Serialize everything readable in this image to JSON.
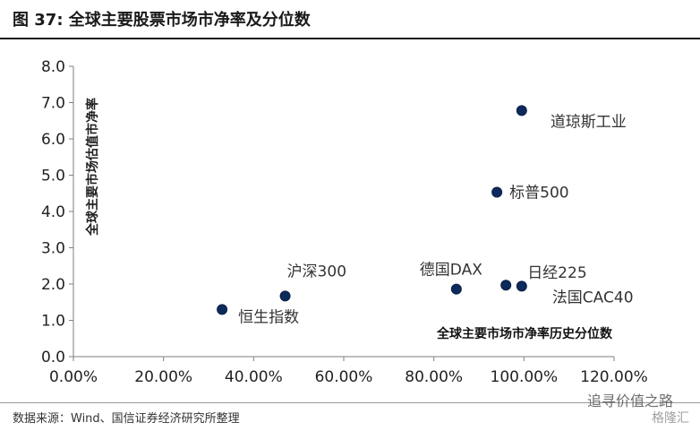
{
  "figure": {
    "title": "图 37:  全球主要股票市场市净率及分位数",
    "source": "数据来源：Wind、国信证券经济研究所整理",
    "watermark": "追寻价值之路",
    "watermark2": "格隆汇"
  },
  "chart_data": {
    "type": "scatter",
    "xlabel": "全球主要市场市净率历史分位数",
    "ylabel": "全球主要市场估值市净率",
    "xlim": [
      0,
      1.2
    ],
    "ylim": [
      0,
      8.0
    ],
    "xticks": [
      "0.00%",
      "20.00%",
      "40.00%",
      "60.00%",
      "80.00%",
      "100.00%",
      "120.00%"
    ],
    "yticks": [
      "0.0",
      "1.0",
      "2.0",
      "3.0",
      "4.0",
      "5.0",
      "6.0",
      "7.0",
      "8.0"
    ],
    "grid": false,
    "marker_color": "#0d2a5c",
    "points": [
      {
        "label": "恒生指数",
        "x": 0.33,
        "y": 1.3
      },
      {
        "label": "沪深300",
        "x": 0.47,
        "y": 1.67
      },
      {
        "label": "德国DAX",
        "x": 0.85,
        "y": 1.86
      },
      {
        "label": "日经225",
        "x": 0.96,
        "y": 1.97
      },
      {
        "label": "法国CAC40",
        "x": 0.995,
        "y": 1.94
      },
      {
        "label": "标普500",
        "x": 0.94,
        "y": 4.53
      },
      {
        "label": "道琼斯工业",
        "x": 0.995,
        "y": 6.78
      }
    ]
  }
}
